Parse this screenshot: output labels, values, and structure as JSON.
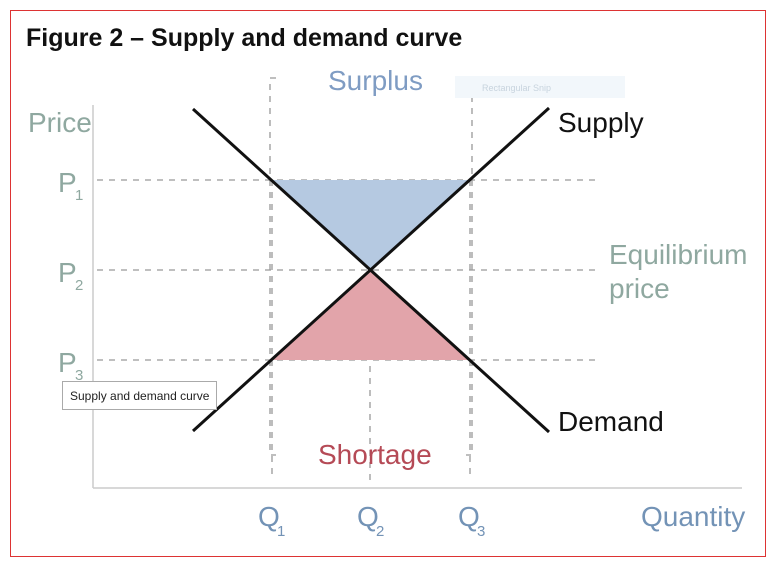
{
  "title": "Figure 2 – Supply and demand curve",
  "axes": {
    "y_label": "Price",
    "x_label": "Quantity"
  },
  "curves": {
    "supply": "Supply",
    "demand": "Demand"
  },
  "regions": {
    "surplus": "Surplus",
    "shortage": "Shortage"
  },
  "equilibrium": {
    "line1": "Equilibrium",
    "line2": "price"
  },
  "prices": [
    {
      "letter": "P",
      "sub": "1"
    },
    {
      "letter": "P",
      "sub": "2"
    },
    {
      "letter": "P",
      "sub": "3"
    }
  ],
  "quantities": [
    {
      "letter": "Q",
      "sub": "1"
    },
    {
      "letter": "Q",
      "sub": "2"
    },
    {
      "letter": "Q",
      "sub": "3"
    }
  ],
  "tooltip": "Supply and demand curve",
  "snip_label": "Rectangular Snip"
}
